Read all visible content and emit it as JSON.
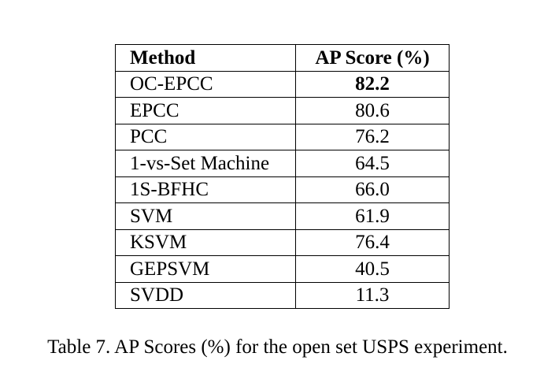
{
  "table": {
    "headers": {
      "method": "Method",
      "score": "AP Score (%)"
    },
    "rows": [
      {
        "method": "OC-EPCC",
        "score": "82.2",
        "best": true
      },
      {
        "method": "EPCC",
        "score": "80.6",
        "best": false
      },
      {
        "method": "PCC",
        "score": "76.2",
        "best": false
      },
      {
        "method": "1-vs-Set Machine",
        "score": "64.5",
        "best": false
      },
      {
        "method": "1S-BFHC",
        "score": "66.0",
        "best": false
      },
      {
        "method": "SVM",
        "score": "61.9",
        "best": false
      },
      {
        "method": "KSVM",
        "score": "76.4",
        "best": false
      },
      {
        "method": "GEPSVM",
        "score": "40.5",
        "best": false
      },
      {
        "method": "SVDD",
        "score": "11.3",
        "best": false
      }
    ]
  },
  "caption": "Table 7. AP Scores (%) for the open set USPS experiment."
}
